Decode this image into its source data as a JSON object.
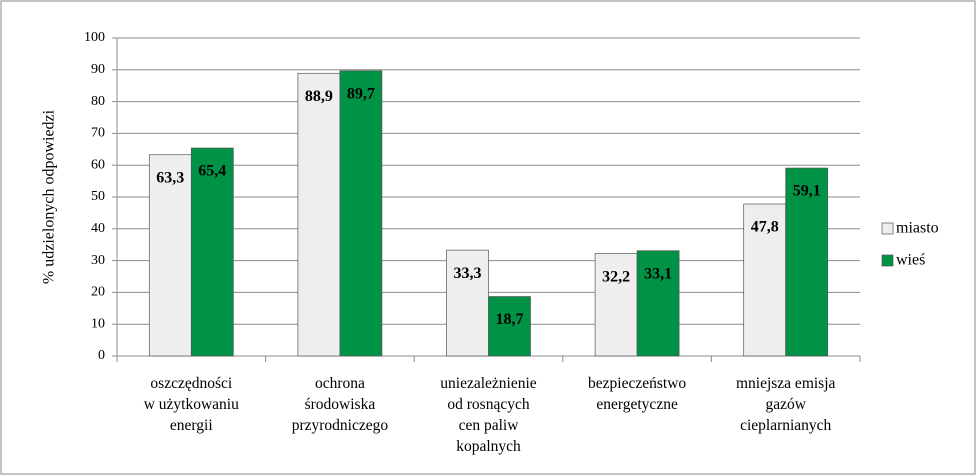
{
  "chart_data": {
    "type": "bar",
    "y_label": "% udzielonych odpowiedzi",
    "categories": [
      [
        "oszczędności",
        "w użytkowaniu",
        "energii"
      ],
      [
        "ochrona",
        "środowiska",
        "przyrodniczego"
      ],
      [
        "uniezależnienie",
        "od rosnących",
        "cen paliw",
        "kopalnych"
      ],
      [
        "bezpieczeństwo",
        "energetyczne"
      ],
      [
        "mniejsza emisja",
        "gazów",
        "cieplarnianych"
      ]
    ],
    "series": [
      {
        "name": "miasto",
        "color": "#eeeeee",
        "values": [
          63.3,
          88.9,
          33.3,
          32.2,
          47.8
        ],
        "value_labels": [
          "63,3",
          "88,9",
          "33,3",
          "32,2",
          "47,8"
        ]
      },
      {
        "name": "wieś",
        "color": "#009245",
        "values": [
          65.4,
          89.7,
          18.7,
          33.1,
          59.1
        ],
        "value_labels": [
          "65,4",
          "89,7",
          "18,7",
          "33,1",
          "59,1"
        ]
      }
    ],
    "ylim": [
      0,
      100
    ],
    "yticks": [
      0,
      10,
      20,
      30,
      40,
      50,
      60,
      70,
      80,
      90,
      100
    ],
    "grid": true,
    "legend": "right"
  }
}
